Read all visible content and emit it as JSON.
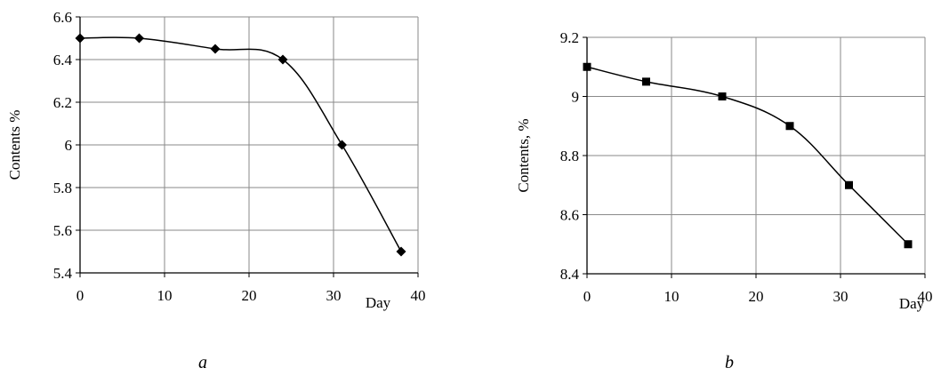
{
  "chart_data": [
    {
      "type": "line",
      "panel_label": "a",
      "xlabel": "Day",
      "ylabel": "Contents %",
      "xlim": [
        0,
        40
      ],
      "ylim": [
        5.4,
        6.6
      ],
      "x_ticks": [
        0,
        10,
        20,
        30,
        40
      ],
      "y_ticks": [
        5.4,
        5.6,
        5.8,
        6.0,
        6.2,
        6.4,
        6.6
      ],
      "y_tick_labels": [
        "5.4",
        "5.6",
        "5.8",
        "6",
        "6.2",
        "6.4",
        "6.6"
      ],
      "grid": true,
      "marker": "diamond",
      "series": [
        {
          "x": [
            0,
            7,
            16,
            24,
            31,
            38
          ],
          "y": [
            6.5,
            6.5,
            6.45,
            6.4,
            6.0,
            5.5
          ]
        }
      ]
    },
    {
      "type": "line",
      "panel_label": "b",
      "xlabel": "Day",
      "ylabel": "Contents, %",
      "xlim": [
        0,
        40
      ],
      "ylim": [
        8.4,
        9.2
      ],
      "x_ticks": [
        0,
        10,
        20,
        30,
        40
      ],
      "y_ticks": [
        8.4,
        8.6,
        8.8,
        9.0,
        9.2
      ],
      "y_tick_labels": [
        "8.4",
        "8.6",
        "8.8",
        "9",
        "9.2"
      ],
      "grid": true,
      "marker": "square",
      "series": [
        {
          "x": [
            0,
            7,
            16,
            24,
            31,
            38
          ],
          "y": [
            9.1,
            9.05,
            9.0,
            8.9,
            8.7,
            8.5
          ]
        }
      ]
    }
  ]
}
